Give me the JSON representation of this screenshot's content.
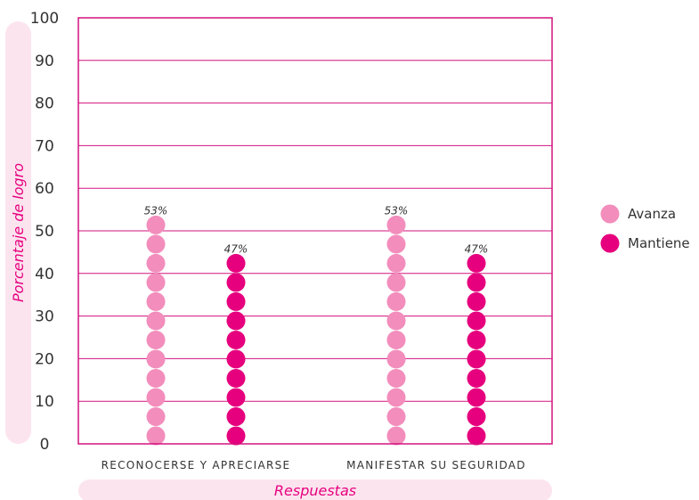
{
  "chart_data": {
    "type": "bar",
    "categories": [
      "RECONOCERSE Y APRECIARSE",
      "MANIFESTAR SU SEGURIDAD"
    ],
    "series": [
      {
        "name": "Avanza",
        "values": [
          53,
          53
        ],
        "labels": [
          "53%",
          "53%"
        ]
      },
      {
        "name": "Mantiene",
        "values": [
          47,
          47
        ],
        "labels": [
          "47%",
          "47%"
        ]
      }
    ],
    "xlabel": "Respuestas",
    "ylabel": "Porcentaje de logro",
    "ylim": [
      0,
      100
    ],
    "yticks": [
      "0",
      "10",
      "20",
      "30",
      "40",
      "50",
      "60",
      "70",
      "80",
      "90",
      "100"
    ],
    "grid": true,
    "legend_position": "right",
    "colors": {
      "avanza": "#F28DBC",
      "mantiene": "#E6007E",
      "axis_line": "#D3127F",
      "label_background": "#FCE4EF",
      "axis_title": "#E6007E"
    }
  }
}
